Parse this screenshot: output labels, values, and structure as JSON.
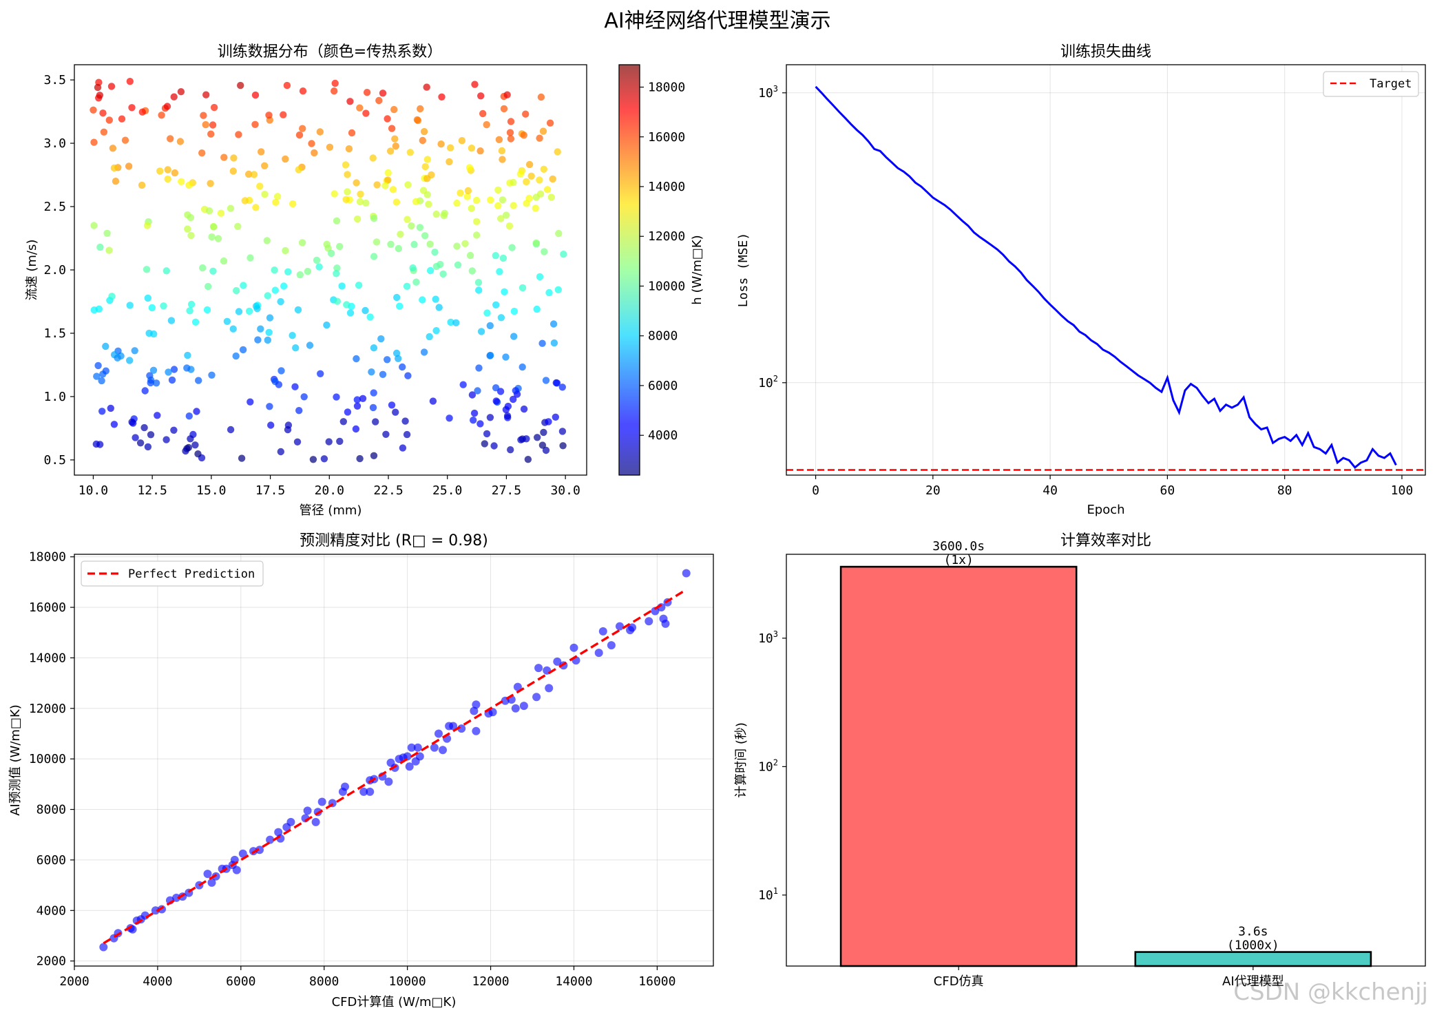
{
  "suptitle": "AI神经网络代理模型演示",
  "watermark": "CSDN @kkchenjj",
  "chart_data": [
    {
      "type": "scatter",
      "title": "训练数据分布（颜色=传热系数）",
      "xlabel": "管径 (mm)",
      "ylabel": "流速 (m/s)",
      "xlim": [
        9.2,
        30.9
      ],
      "ylim": [
        0.38,
        3.62
      ],
      "xticks": [
        "10.0",
        "12.5",
        "15.0",
        "17.5",
        "20.0",
        "22.5",
        "25.0",
        "27.5",
        "30.0"
      ],
      "yticks": [
        "0.5",
        "1.0",
        "1.5",
        "2.0",
        "2.5",
        "3.0",
        "3.5"
      ],
      "colorbar": {
        "label": "h (W/m□K)",
        "range": [
          2400,
          18900
        ],
        "ticks": [
          "4000",
          "6000",
          "8000",
          "10000",
          "12000",
          "14000",
          "16000",
          "18000"
        ],
        "colormap": "jet"
      },
      "point_count": 500,
      "marker_alpha": 0.7,
      "grid": false
    },
    {
      "type": "line",
      "title": "训练损失曲线",
      "xlabel": "Epoch",
      "ylabel": "Loss (MSE)",
      "xlim": [
        -5,
        104
      ],
      "ylim": [
        48,
        1250
      ],
      "yscale": "log",
      "xticks": [
        "0",
        "20",
        "40",
        "60",
        "80",
        "100"
      ],
      "yticks": [
        {
          "label": "10",
          "exp": "3",
          "value": 1000
        },
        {
          "label": "10",
          "exp": "2",
          "value": 100
        }
      ],
      "grid": true,
      "legend_position": "top-right",
      "series": [
        {
          "name": "",
          "color": "#0000ff",
          "x_start": 0,
          "values": [
            1050,
            1000,
            950,
            905,
            860,
            820,
            780,
            745,
            715,
            680,
            640,
            630,
            600,
            575,
            550,
            535,
            515,
            490,
            475,
            455,
            435,
            422,
            410,
            395,
            378,
            362,
            348,
            330,
            318,
            308,
            298,
            288,
            276,
            262,
            252,
            240,
            226,
            216,
            206,
            195,
            186,
            178,
            170,
            163,
            158,
            150,
            146,
            140,
            136,
            130,
            127,
            123,
            118,
            114,
            110,
            106,
            103,
            100,
            96,
            93,
            104,
            87,
            79,
            94,
            99,
            96,
            90,
            85,
            88,
            80,
            84,
            82,
            84,
            89,
            76,
            72,
            69,
            70,
            62,
            64,
            65,
            63,
            66,
            61,
            67,
            60,
            59,
            57,
            61,
            53,
            55,
            54,
            51,
            53,
            54,
            59,
            56,
            55,
            57,
            52
          ]
        },
        {
          "name": "Target",
          "color": "#ff0000",
          "dashed": true,
          "values": [
            50
          ]
        }
      ]
    },
    {
      "type": "scatter",
      "title": "预测精度对比 (R□ = 0.98)",
      "xlabel": "CFD计算值 (W/m□K)",
      "ylabel": "AI预测值 (W/m□K)",
      "xlim": [
        2000,
        17350
      ],
      "ylim": [
        1800,
        18100
      ],
      "xticks": [
        "2000",
        "4000",
        "6000",
        "8000",
        "10000",
        "12000",
        "14000",
        "16000"
      ],
      "yticks": [
        "2000",
        "4000",
        "6000",
        "8000",
        "10000",
        "12000",
        "14000",
        "16000",
        "18000"
      ],
      "grid": true,
      "legend_position": "top-left",
      "reference_line": {
        "name": "Perfect Prediction",
        "from": 2700,
        "to": 16700,
        "color": "#ff0000"
      },
      "point_color": "#0000ff",
      "point_alpha": 0.6,
      "points": [
        [
          2700,
          2550
        ],
        [
          2950,
          2900
        ],
        [
          3050,
          3100
        ],
        [
          3350,
          3300
        ],
        [
          3400,
          3250
        ],
        [
          3500,
          3600
        ],
        [
          3600,
          3650
        ],
        [
          3700,
          3800
        ],
        [
          3950,
          4000
        ],
        [
          4100,
          4050
        ],
        [
          4300,
          4400
        ],
        [
          4450,
          4500
        ],
        [
          4600,
          4550
        ],
        [
          4750,
          4700
        ],
        [
          5000,
          5000
        ],
        [
          5200,
          5450
        ],
        [
          5300,
          5100
        ],
        [
          5400,
          5350
        ],
        [
          5550,
          5650
        ],
        [
          5650,
          5650
        ],
        [
          5800,
          5800
        ],
        [
          5850,
          6000
        ],
        [
          5900,
          5600
        ],
        [
          6050,
          6250
        ],
        [
          6300,
          6350
        ],
        [
          6450,
          6400
        ],
        [
          6700,
          6800
        ],
        [
          6900,
          7100
        ],
        [
          6950,
          6850
        ],
        [
          7100,
          7300
        ],
        [
          7200,
          7500
        ],
        [
          7550,
          7650
        ],
        [
          7600,
          7950
        ],
        [
          7800,
          7500
        ],
        [
          7850,
          7900
        ],
        [
          7950,
          8300
        ],
        [
          8200,
          8250
        ],
        [
          8450,
          8700
        ],
        [
          8500,
          8900
        ],
        [
          8950,
          8700
        ],
        [
          9100,
          9150
        ],
        [
          9100,
          8700
        ],
        [
          9200,
          9200
        ],
        [
          9400,
          9300
        ],
        [
          9550,
          9100
        ],
        [
          9600,
          9850
        ],
        [
          9700,
          9650
        ],
        [
          9800,
          10000
        ],
        [
          9900,
          10050
        ],
        [
          10000,
          10100
        ],
        [
          10050,
          9700
        ],
        [
          10100,
          10450
        ],
        [
          10200,
          9900
        ],
        [
          10250,
          10450
        ],
        [
          10300,
          10100
        ],
        [
          10650,
          10450
        ],
        [
          10750,
          11000
        ],
        [
          10850,
          10350
        ],
        [
          10950,
          10800
        ],
        [
          11000,
          11300
        ],
        [
          11100,
          11300
        ],
        [
          11300,
          11200
        ],
        [
          11600,
          11900
        ],
        [
          11650,
          11100
        ],
        [
          11650,
          12150
        ],
        [
          11950,
          11800
        ],
        [
          12050,
          11850
        ],
        [
          12350,
          12300
        ],
        [
          12500,
          12350
        ],
        [
          12600,
          12000
        ],
        [
          12650,
          12850
        ],
        [
          12800,
          12100
        ],
        [
          13100,
          12450
        ],
        [
          13150,
          13600
        ],
        [
          13350,
          13500
        ],
        [
          13400,
          12800
        ],
        [
          13600,
          13850
        ],
        [
          13750,
          13700
        ],
        [
          14000,
          14400
        ],
        [
          14050,
          13900
        ],
        [
          14600,
          14200
        ],
        [
          14700,
          15050
        ],
        [
          14900,
          14500
        ],
        [
          15100,
          15250
        ],
        [
          15350,
          15100
        ],
        [
          15400,
          15200
        ],
        [
          15800,
          15450
        ],
        [
          15950,
          15850
        ],
        [
          16100,
          16000
        ],
        [
          16150,
          15550
        ],
        [
          16200,
          15350
        ],
        [
          16250,
          16200
        ],
        [
          16700,
          17350
        ]
      ]
    },
    {
      "type": "bar",
      "title": "计算效率对比",
      "ylabel": "计算时间 (秒)",
      "yscale": "log",
      "ylim": [
        2.8,
        4500
      ],
      "yticks": [
        {
          "label": "10",
          "exp": "1",
          "value": 10
        },
        {
          "label": "10",
          "exp": "2",
          "value": 100
        },
        {
          "label": "10",
          "exp": "3",
          "value": 1000
        }
      ],
      "grid": false,
      "categories": [
        "CFD仿真",
        "AI代理模型"
      ],
      "values": [
        3600,
        3.6
      ],
      "colors": [
        "#ff6b6b",
        "#4ecdc4"
      ],
      "value_labels": [
        "3600.0s",
        "3.6s"
      ],
      "speedup_labels": [
        "(1x)",
        "(1000x)"
      ]
    }
  ]
}
